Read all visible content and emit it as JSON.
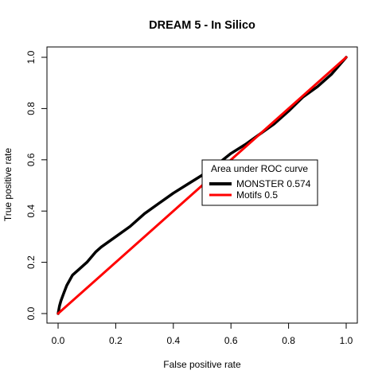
{
  "chart_data": {
    "type": "line",
    "title": "DREAM 5 - In Silico",
    "xlabel": "False positive rate",
    "ylabel": "True positive rate",
    "xlim": [
      0,
      1
    ],
    "ylim": [
      0,
      1
    ],
    "x_ticks": [
      0.0,
      0.2,
      0.4,
      0.6,
      0.8,
      1.0
    ],
    "y_ticks": [
      0.0,
      0.2,
      0.4,
      0.6,
      0.8,
      1.0
    ],
    "x_tick_labels": [
      "0.0",
      "0.2",
      "0.4",
      "0.6",
      "0.8",
      "1.0"
    ],
    "y_tick_labels": [
      "0.0",
      "0.2",
      "0.4",
      "0.6",
      "0.8",
      "1.0"
    ],
    "grid": false,
    "legend": {
      "title": "Area under ROC curve",
      "placement": "center-right",
      "entries": [
        "MONSTER 0.574",
        "Motifs 0.5"
      ]
    },
    "series": [
      {
        "name": "MONSTER 0.574",
        "color": "#000000",
        "x": [
          0,
          0.005,
          0.01,
          0.02,
          0.03,
          0.05,
          0.07,
          0.1,
          0.13,
          0.15,
          0.2,
          0.25,
          0.3,
          0.35,
          0.4,
          0.45,
          0.5,
          0.55,
          0.6,
          0.65,
          0.7,
          0.75,
          0.8,
          0.85,
          0.9,
          0.95,
          1.0
        ],
        "y": [
          0,
          0.03,
          0.05,
          0.08,
          0.11,
          0.15,
          0.17,
          0.2,
          0.24,
          0.26,
          0.3,
          0.34,
          0.39,
          0.43,
          0.47,
          0.505,
          0.54,
          0.58,
          0.625,
          0.66,
          0.7,
          0.74,
          0.79,
          0.845,
          0.885,
          0.935,
          1.0
        ]
      },
      {
        "name": "Motifs 0.5",
        "color": "#ff0000",
        "x": [
          0,
          1
        ],
        "y": [
          0,
          1
        ]
      }
    ]
  }
}
